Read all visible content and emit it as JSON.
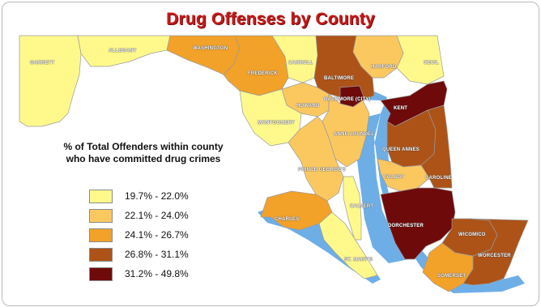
{
  "title": "Drug Offenses by County",
  "legend": {
    "heading_line1": "% of Total Offenders within county",
    "heading_line2": "who have committed drug crimes",
    "items": [
      {
        "label": "19.7% - 22.0%",
        "color": "#fff98c"
      },
      {
        "label": "22.1% - 24.0%",
        "color": "#fbc860"
      },
      {
        "label": "24.1% - 26.7%",
        "color": "#f2a129"
      },
      {
        "label": "26.8% - 31.1%",
        "color": "#ad5318"
      },
      {
        "label": "31.2% - 49.8%",
        "color": "#6f0a0a"
      }
    ]
  },
  "water_color": "#6eaee6",
  "counties": {
    "garrett": "GARRETT",
    "allegany": "ALLEGANY",
    "washington": "WASHINGTON",
    "frederick": "FREDERICK",
    "carroll": "CARROLL",
    "harford": "HARFORD",
    "cecil": "CECIL",
    "baltimore": "BALTIMORE",
    "baltimore_city": "BALTIMORE (CITY)",
    "howard": "HOWARD",
    "montgomery": "MONTGOMERY",
    "anne_arundel": "ANNE ARUNDEL",
    "kent": "KENT",
    "queen_annes": "QUEEN ANNES",
    "talbot": "TALBOT",
    "caroline": "CAROLINE",
    "prince_georges": "PRINCE GEORGE'S",
    "calvert": "CALVERT",
    "charles": "CHARLES",
    "dorchester": "DORCHESTER",
    "wicomico": "WICOMICO",
    "worcester": "WORCESTER",
    "st_marys": "ST. MARY'S",
    "somerset": "SOMERSET"
  }
}
